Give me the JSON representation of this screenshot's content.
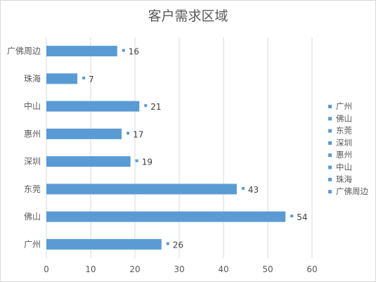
{
  "chart_data": {
    "type": "bar",
    "orientation": "horizontal",
    "title": "客户需求区域",
    "categories": [
      "广佛周边",
      "珠海",
      "中山",
      "惠州",
      "深圳",
      "东莞",
      "佛山",
      "广州"
    ],
    "values": [
      16,
      7,
      21,
      17,
      19,
      43,
      54,
      26
    ],
    "xlim": [
      0,
      60
    ],
    "xticks": [
      0,
      10,
      20,
      30,
      40,
      50,
      60
    ],
    "grid": true,
    "legend": {
      "placement": "right",
      "entries": [
        "广州",
        "佛山",
        "东莞",
        "深圳",
        "惠州",
        "中山",
        "珠海",
        "广佛周边"
      ]
    },
    "data_labels": true,
    "colors": {
      "bar": "#5b9bd5",
      "grid": "#d9d9d9",
      "text": "#404040",
      "axis_text": "#595959"
    }
  }
}
